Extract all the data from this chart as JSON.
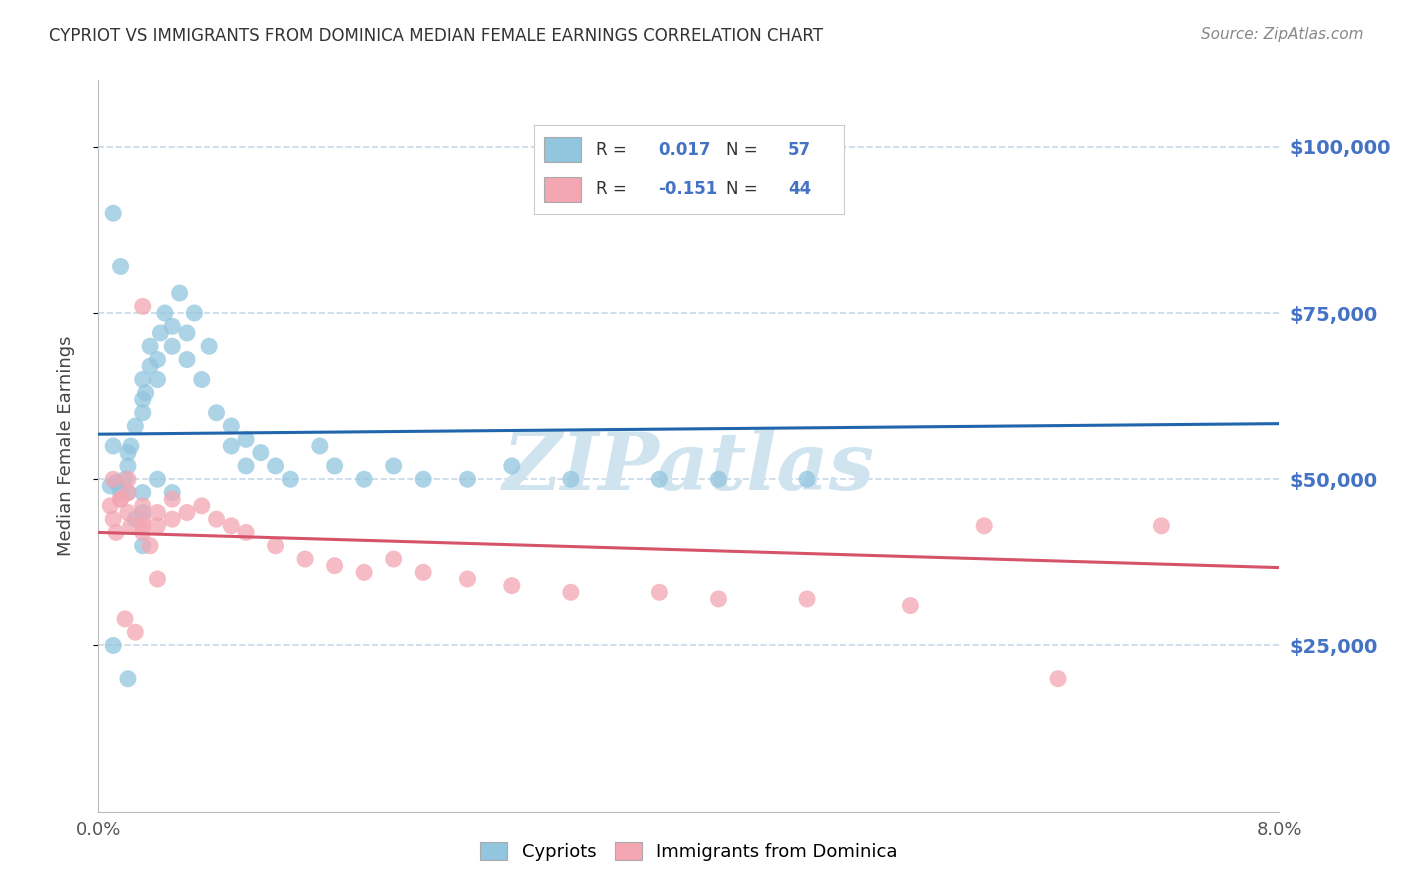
{
  "title": "CYPRIOT VS IMMIGRANTS FROM DOMINICA MEDIAN FEMALE EARNINGS CORRELATION CHART",
  "source": "Source: ZipAtlas.com",
  "ylabel": "Median Female Earnings",
  "xlim": [
    0.0,
    0.08
  ],
  "ylim": [
    0,
    110000
  ],
  "yticks": [
    25000,
    50000,
    75000,
    100000
  ],
  "yticklabels": [
    "$25,000",
    "$50,000",
    "$75,000",
    "$100,000"
  ],
  "cypriot_R": 0.017,
  "cypriot_N": 57,
  "dominica_R": -0.151,
  "dominica_N": 44,
  "blue_scatter_color": "#92c5de",
  "blue_line_color": "#2166ac",
  "pink_scatter_color": "#f4a6b2",
  "pink_line_color": "#d6546a",
  "legend_color": "#4472c4",
  "watermark": "ZIPatlas",
  "watermark_color": "#d0e4f0",
  "background_color": "#ffffff",
  "grid_color": "#c8d8e8",
  "cypriot_x": [
    0.0008,
    0.0012,
    0.0015,
    0.0018,
    0.002,
    0.002,
    0.0022,
    0.0025,
    0.003,
    0.003,
    0.003,
    0.0032,
    0.0035,
    0.0035,
    0.004,
    0.004,
    0.0042,
    0.0045,
    0.005,
    0.005,
    0.0055,
    0.006,
    0.006,
    0.0065,
    0.007,
    0.0075,
    0.008,
    0.009,
    0.009,
    0.01,
    0.01,
    0.011,
    0.012,
    0.013,
    0.015,
    0.016,
    0.018,
    0.02,
    0.022,
    0.025,
    0.028,
    0.032,
    0.038,
    0.042,
    0.048,
    0.001,
    0.0015,
    0.002,
    0.003,
    0.004,
    0.003,
    0.0025,
    0.005,
    0.001,
    0.002,
    0.003,
    0.001
  ],
  "cypriot_y": [
    49000,
    49500,
    48000,
    50000,
    54000,
    52000,
    55000,
    58000,
    60000,
    62000,
    65000,
    63000,
    67000,
    70000,
    68000,
    65000,
    72000,
    75000,
    70000,
    73000,
    78000,
    68000,
    72000,
    75000,
    65000,
    70000,
    60000,
    58000,
    55000,
    52000,
    56000,
    54000,
    52000,
    50000,
    55000,
    52000,
    50000,
    52000,
    50000,
    50000,
    52000,
    50000,
    50000,
    50000,
    50000,
    90000,
    82000,
    48000,
    48000,
    50000,
    45000,
    44000,
    48000,
    25000,
    20000,
    40000,
    55000
  ],
  "dominica_x": [
    0.0008,
    0.001,
    0.0012,
    0.0015,
    0.002,
    0.002,
    0.0022,
    0.003,
    0.003,
    0.003,
    0.0035,
    0.004,
    0.004,
    0.005,
    0.005,
    0.006,
    0.007,
    0.008,
    0.009,
    0.01,
    0.012,
    0.014,
    0.016,
    0.018,
    0.02,
    0.022,
    0.025,
    0.028,
    0.032,
    0.038,
    0.042,
    0.048,
    0.055,
    0.06,
    0.065,
    0.072,
    0.001,
    0.0015,
    0.002,
    0.003,
    0.004,
    0.0025,
    0.0018,
    0.003
  ],
  "dominica_y": [
    46000,
    44000,
    42000,
    47000,
    48000,
    45000,
    43000,
    46000,
    44000,
    42000,
    40000,
    45000,
    43000,
    47000,
    44000,
    45000,
    46000,
    44000,
    43000,
    42000,
    40000,
    38000,
    37000,
    36000,
    38000,
    36000,
    35000,
    34000,
    33000,
    33000,
    32000,
    32000,
    31000,
    43000,
    20000,
    43000,
    50000,
    47000,
    50000,
    43000,
    35000,
    27000,
    29000,
    76000
  ]
}
